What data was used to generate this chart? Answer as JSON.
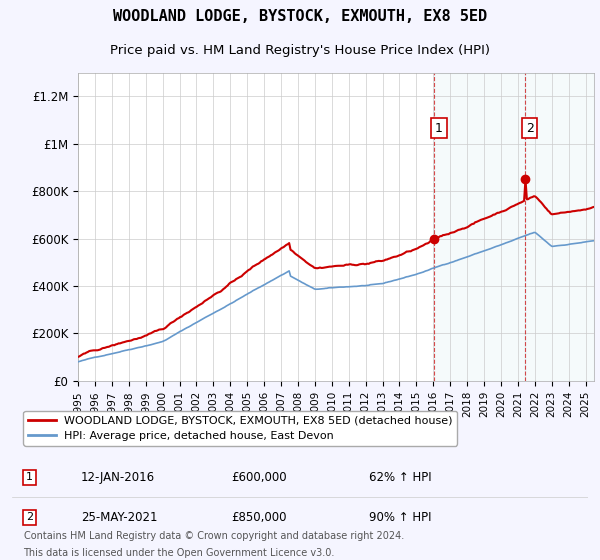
{
  "title": "WOODLAND LODGE, BYSTOCK, EXMOUTH, EX8 5ED",
  "subtitle": "Price paid vs. HM Land Registry's House Price Index (HPI)",
  "legend_line1": "WOODLAND LODGE, BYSTOCK, EXMOUTH, EX8 5ED (detached house)",
  "legend_line2": "HPI: Average price, detached house, East Devon",
  "annotation1_date": "12-JAN-2016",
  "annotation1_price": "£600,000",
  "annotation1_hpi": "62% ↑ HPI",
  "annotation2_date": "25-MAY-2021",
  "annotation2_price": "£850,000",
  "annotation2_hpi": "90% ↑ HPI",
  "footnote1": "Contains HM Land Registry data © Crown copyright and database right 2024.",
  "footnote2": "This data is licensed under the Open Government Licence v3.0.",
  "red_color": "#cc0000",
  "blue_color": "#6699cc",
  "background_color": "#f5f5ff",
  "plot_bg": "#ffffff",
  "ylim": [
    0,
    1300000
  ],
  "yticks": [
    0,
    200000,
    400000,
    600000,
    800000,
    1000000,
    1200000
  ],
  "ytick_labels": [
    "£0",
    "£200K",
    "£400K",
    "£600K",
    "£800K",
    "£1M",
    "£1.2M"
  ],
  "sale1_x": 2016.04,
  "sale1_y": 600000,
  "sale2_x": 2021.4,
  "sale2_y": 850000,
  "xmin": 1995,
  "xmax": 2025.5,
  "xticks": [
    1995,
    1996,
    1997,
    1998,
    1999,
    2000,
    2001,
    2002,
    2003,
    2004,
    2005,
    2006,
    2007,
    2008,
    2009,
    2010,
    2011,
    2012,
    2013,
    2014,
    2015,
    2016,
    2017,
    2018,
    2019,
    2020,
    2021,
    2022,
    2023,
    2024,
    2025
  ]
}
